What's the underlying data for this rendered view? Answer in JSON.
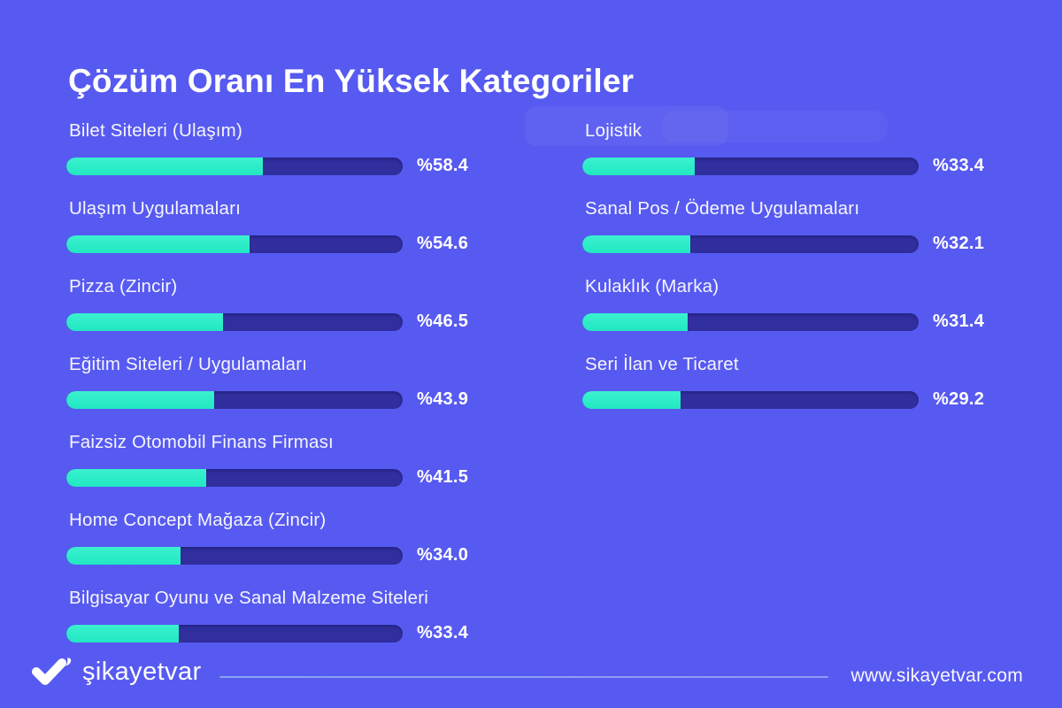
{
  "title": "Çözüm Oranı En Yüksek Kategoriler",
  "colors": {
    "background": "#575af0",
    "bar_track": "#312f9e",
    "bar_fill": "#2beec6",
    "text": "#ffffff"
  },
  "chart_data": {
    "type": "bar",
    "orientation": "horizontal",
    "title": "Çözüm Oranı En Yüksek Kategoriler",
    "xlim": [
      0,
      100
    ],
    "value_prefix": "%",
    "grid": false,
    "legend": false,
    "columns": [
      {
        "items": [
          {
            "label": "Bilet Siteleri (Ulaşım)",
            "value": 58.4,
            "display": "%58.4"
          },
          {
            "label": "Ulaşım Uygulamaları",
            "value": 54.6,
            "display": "%54.6"
          },
          {
            "label": "Pizza (Zincir)",
            "value": 46.5,
            "display": "%46.5"
          },
          {
            "label": "Eğitim Siteleri / Uygulamaları",
            "value": 43.9,
            "display": "%43.9"
          },
          {
            "label": "Faizsiz Otomobil Finans Firması",
            "value": 41.5,
            "display": "%41.5"
          },
          {
            "label": "Home Concept Mağaza (Zincir)",
            "value": 34.0,
            "display": "%34.0"
          },
          {
            "label": "Bilgisayar Oyunu ve Sanal Malzeme Siteleri",
            "value": 33.4,
            "display": "%33.4"
          }
        ]
      },
      {
        "items": [
          {
            "label": "Lojistik",
            "value": 33.4,
            "display": "%33.4"
          },
          {
            "label": "Sanal Pos / Ödeme Uygulamaları",
            "value": 32.1,
            "display": "%32.1"
          },
          {
            "label": "Kulaklık (Marka)",
            "value": 31.4,
            "display": "%31.4"
          },
          {
            "label": "Seri İlan ve Ticaret",
            "value": 29.2,
            "display": "%29.2"
          }
        ]
      }
    ]
  },
  "footer": {
    "brand": "şikayetvar",
    "logo_icon": "sikayetvar-swoosh-icon",
    "website": "www.sikayetvar.com"
  }
}
